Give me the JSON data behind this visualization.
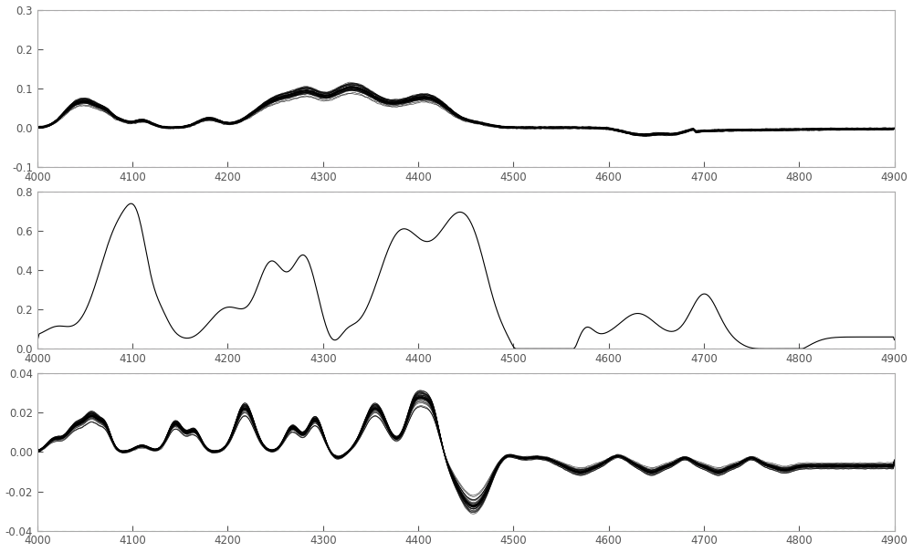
{
  "xmin": 4000,
  "xmax": 4900,
  "xticks": [
    4000,
    4100,
    4200,
    4300,
    4400,
    4500,
    4600,
    4700,
    4800,
    4900
  ],
  "plot1": {
    "ymin": -0.1,
    "ymax": 0.3,
    "yticks": [
      -0.1,
      0,
      0.1,
      0.2,
      0.3
    ],
    "line_color": "#000000",
    "n_lines": 30
  },
  "plot2": {
    "ymin": 0,
    "ymax": 0.8,
    "yticks": [
      0,
      0.2,
      0.4,
      0.6,
      0.8
    ],
    "line_color": "#000000",
    "n_lines": 1
  },
  "plot3": {
    "ymin": -0.04,
    "ymax": 0.04,
    "yticks": [
      -0.04,
      -0.02,
      0,
      0.02,
      0.04
    ],
    "line_color": "#000000",
    "n_lines": 30
  },
  "bg_color": "#ffffff",
  "border_color": "#aaaaaa",
  "tick_color_x": "#9080b0",
  "tick_color_y": "#888888",
  "top_line_color": "#c090c0",
  "bottom_line_color": "#90b890"
}
